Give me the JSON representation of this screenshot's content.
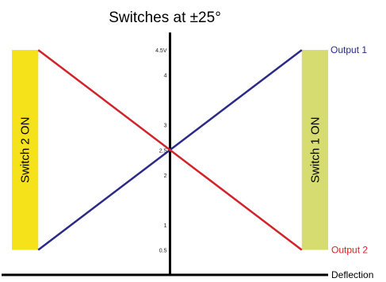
{
  "chart_data": {
    "type": "line",
    "title": "Switches at ±25°",
    "xlabel": "Deflection",
    "ylabel": "",
    "x": [
      -25,
      25
    ],
    "xlim": [
      -30,
      30
    ],
    "ylim": [
      0,
      4.85
    ],
    "yticks": [
      "0.5",
      "1",
      "2",
      "2.5",
      "3",
      "4",
      "4.5V"
    ],
    "series": [
      {
        "name": "Output 1",
        "color": "#2c2a87",
        "values": [
          0.5,
          4.5
        ]
      },
      {
        "name": "Output 2",
        "color": "#d2232a",
        "values": [
          4.5,
          0.5
        ]
      }
    ],
    "annotations": [
      {
        "label": "Switch 2 ON",
        "color": "#f6e21a",
        "x_range": [
          -30,
          -25
        ]
      },
      {
        "label": "Switch 1 ON",
        "color": "#d6dc6f",
        "x_range": [
          25,
          30
        ]
      }
    ]
  }
}
